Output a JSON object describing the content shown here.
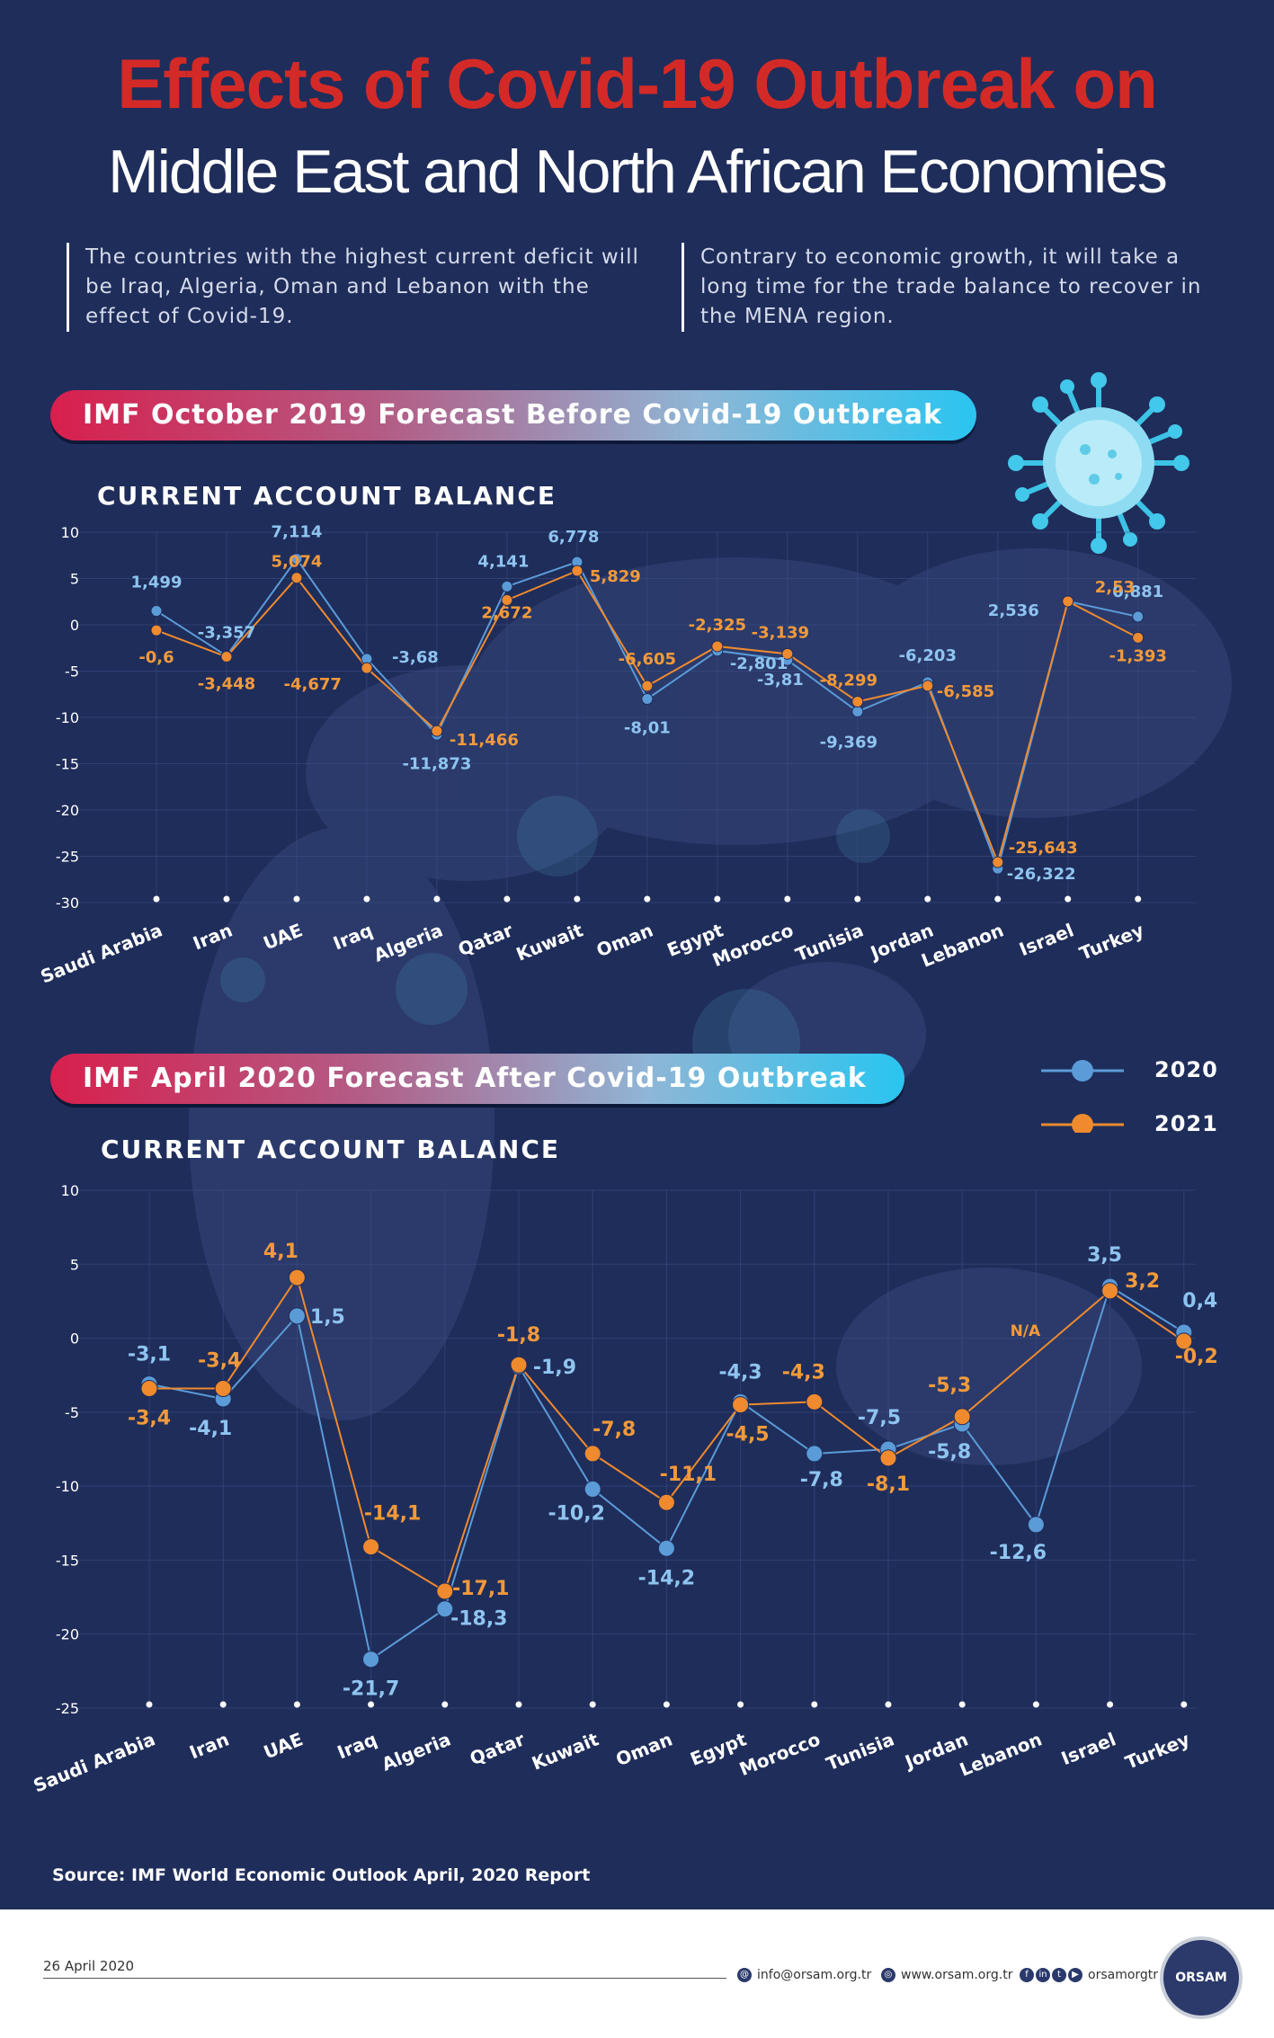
{
  "header": {
    "title_line1": "Effects of Covid-19 Outbreak on",
    "title_line2": "Middle East and North African Economies"
  },
  "intro": {
    "left": "The countries with the highest current deficit will be Iraq, Algeria, Oman and Lebanon with the effect of Covid-19.",
    "right": "Contrary to economic growth, it will take a long time for the trade balance to recover in the MENA region."
  },
  "legend": {
    "series1": "2020",
    "series2": "2021"
  },
  "colors": {
    "series_2020": "#5b9bd8",
    "series_2021": "#ef8a2e",
    "label_2020": "#8fc4f0",
    "label_2021": "#f39a3b"
  },
  "chart_data": [
    {
      "type": "line",
      "banner": "IMF October 2019 Forecast Before Covid-19 Outbreak",
      "title": "CURRENT ACCOUNT BALANCE",
      "categories": [
        "Saudi Arabia",
        "Iran",
        "UAE",
        "Iraq",
        "Algeria",
        "Qatar",
        "Kuwait",
        "Oman",
        "Egypt",
        "Morocco",
        "Tunisia",
        "Jordan",
        "Lebanon",
        "Israel",
        "Turkey"
      ],
      "ylim": [
        -30,
        10
      ],
      "yticks": [
        10,
        5,
        0,
        -5,
        -10,
        -15,
        -20,
        -25,
        -30
      ],
      "series": [
        {
          "name": "2020",
          "values": [
            1.499,
            -3.357,
            7.114,
            -3.68,
            -11.873,
            4.141,
            6.778,
            -8.01,
            -2.801,
            -3.81,
            -9.369,
            -6.203,
            -26.322,
            2.536,
            0.881
          ],
          "labels": [
            "1,499",
            "-3,357",
            "7,114",
            "-3,68",
            "-11,873",
            "4,141",
            "6,778",
            "-8,01",
            "-2,801",
            "-3,81",
            "-9,369",
            "-6,203",
            "-26,322",
            "2,536",
            "0,881"
          ]
        },
        {
          "name": "2021",
          "values": [
            -0.6,
            -3.448,
            5.074,
            -4.677,
            -11.466,
            2.672,
            5.829,
            -6.605,
            -2.325,
            -3.139,
            -8.299,
            -6.585,
            -25.643,
            2.53,
            -1.393
          ],
          "labels": [
            "-0,6",
            "-3,448",
            "5,074",
            "-4,677",
            "-11,466",
            "2,672",
            "5,829",
            "-6,605",
            "-2,325",
            "-3,139",
            "-8,299",
            "-6,585",
            "-25,643",
            "2,53",
            "-1,393"
          ]
        }
      ]
    },
    {
      "type": "line",
      "banner": "IMF April 2020 Forecast After Covid-19 Outbreak",
      "title": "CURRENT ACCOUNT BALANCE",
      "categories": [
        "Saudi Arabia",
        "Iran",
        "UAE",
        "Iraq",
        "Algeria",
        "Qatar",
        "Kuwait",
        "Oman",
        "Egypt",
        "Morocco",
        "Tunisia",
        "Jordan",
        "Lebanon",
        "Israel",
        "Turkey"
      ],
      "ylim": [
        -25,
        10
      ],
      "yticks": [
        10,
        5,
        0,
        -5,
        -10,
        -15,
        -20,
        -25
      ],
      "series": [
        {
          "name": "2020",
          "values": [
            -3.1,
            -4.1,
            1.5,
            -21.7,
            -18.3,
            -1.9,
            -10.2,
            -14.2,
            -4.3,
            -7.8,
            -7.5,
            -5.8,
            -12.6,
            3.5,
            0.4
          ],
          "labels": [
            "-3,1",
            "-4,1",
            "1,5",
            "-21,7",
            "-18,3",
            "-1,9",
            "-10,2",
            "-14,2",
            "-4,3",
            "-7,8",
            "-7,5",
            "-5,8",
            "-12,6",
            "3,5",
            "0,4"
          ]
        },
        {
          "name": "2021",
          "values": [
            -3.4,
            -3.4,
            4.1,
            -14.1,
            -17.1,
            -1.8,
            -7.8,
            -11.1,
            -4.5,
            -4.3,
            -8.1,
            -5.3,
            null,
            3.2,
            -0.2
          ],
          "labels": [
            "-3,4",
            "-3,4",
            "4,1",
            "-14,1",
            "-17,1",
            "-1,8",
            "-7,8",
            "-11,1",
            "-4,5",
            "-4,3",
            "-8,1",
            "-5,3",
            "N/A",
            "3,2",
            "-0,2"
          ]
        }
      ]
    }
  ],
  "source": "Source: IMF World Economic Outlook April, 2020 Report",
  "footer": {
    "date": "26 April 2020",
    "email": "info@orsam.org.tr",
    "website": "www.orsam.org.tr",
    "social": "orsamorgtr",
    "logo_text": "ORSAM"
  }
}
